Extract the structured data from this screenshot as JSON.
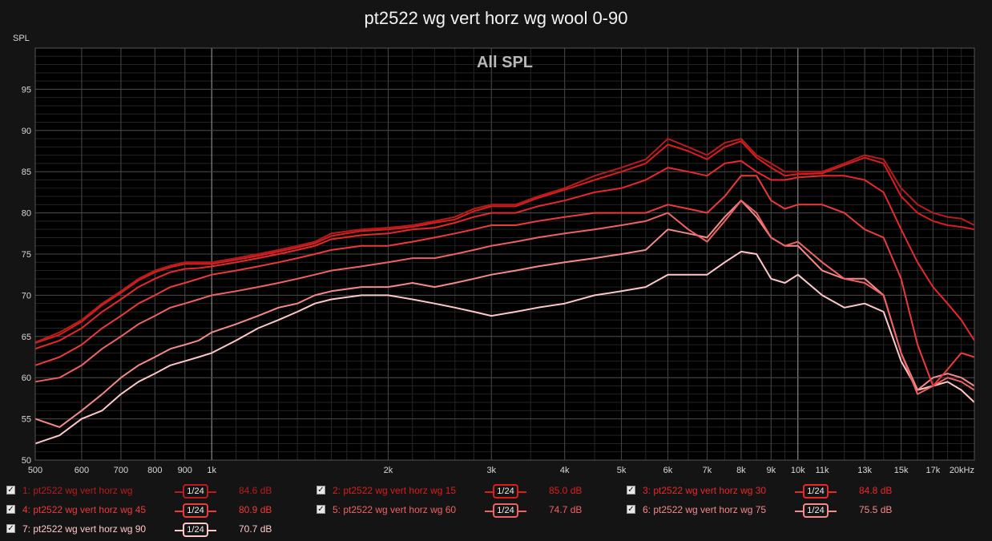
{
  "window": {
    "title": "pt2522 wg vert horz wg wool 0-90"
  },
  "chart_data": {
    "type": "line",
    "title": "pt2522 wg vert horz wg wool 0-90",
    "subtitle": "All SPL",
    "ylabel": "SPL",
    "xlabel": "",
    "xscale": "log",
    "xlim": [
      500,
      20000
    ],
    "ylim": [
      50,
      100
    ],
    "grid": true,
    "y_ticks": [
      "50",
      "55",
      "60",
      "65",
      "70",
      "75",
      "80",
      "85",
      "90",
      "95"
    ],
    "x_ticks": [
      {
        "v": 500,
        "label": "500"
      },
      {
        "v": 600,
        "label": "600"
      },
      {
        "v": 700,
        "label": "700"
      },
      {
        "v": 800,
        "label": "800"
      },
      {
        "v": 900,
        "label": "900"
      },
      {
        "v": 1000,
        "label": "1k"
      },
      {
        "v": 2000,
        "label": "2k"
      },
      {
        "v": 3000,
        "label": "3k"
      },
      {
        "v": 4000,
        "label": "4k"
      },
      {
        "v": 5000,
        "label": "5k"
      },
      {
        "v": 6000,
        "label": "6k"
      },
      {
        "v": 7000,
        "label": "7k"
      },
      {
        "v": 8000,
        "label": "8k"
      },
      {
        "v": 9000,
        "label": "9k"
      },
      {
        "v": 10000,
        "label": "10k"
      },
      {
        "v": 11000,
        "label": "11k"
      },
      {
        "v": 13000,
        "label": "13k"
      },
      {
        "v": 15000,
        "label": "15k"
      },
      {
        "v": 17000,
        "label": "17k"
      },
      {
        "v": 20000,
        "label": "20kHz"
      }
    ],
    "freqs": [
      500,
      550,
      600,
      650,
      700,
      750,
      800,
      850,
      900,
      950,
      1000,
      1100,
      1200,
      1300,
      1400,
      1500,
      1600,
      1800,
      2000,
      2200,
      2400,
      2600,
      2800,
      3000,
      3300,
      3600,
      4000,
      4500,
      5000,
      5500,
      6000,
      6500,
      7000,
      7500,
      8000,
      8500,
      9000,
      9500,
      10000,
      11000,
      12000,
      13000,
      14000,
      15000,
      16000,
      17000,
      18000,
      19000,
      20000
    ],
    "series": [
      {
        "name": "1: pt2522 wg vert horz wg",
        "smoothing": "1/24",
        "level": "84.6 dB",
        "color": "#b71c1c",
        "values": [
          64.3,
          65.5,
          67,
          69,
          70.5,
          72,
          73,
          73.6,
          74,
          74,
          74,
          74.5,
          75,
          75.5,
          76,
          76.5,
          77.5,
          78,
          78.2,
          78.5,
          79,
          79.5,
          80.5,
          81,
          81,
          82,
          83,
          84.5,
          85.5,
          86.5,
          89,
          88,
          87,
          88.5,
          89,
          87,
          86,
          85,
          85,
          85,
          86,
          87,
          86.5,
          83,
          81,
          80,
          79.5,
          79.3,
          78.5
        ]
      },
      {
        "name": "2: pt2522 wg vert horz wg 15",
        "smoothing": "1/24",
        "level": "85.0 dB",
        "color": "#dd1c1c",
        "values": [
          64.2,
          65.2,
          66.8,
          68.8,
          70.3,
          71.8,
          72.8,
          73.4,
          73.8,
          73.8,
          73.8,
          74.3,
          74.8,
          75.3,
          75.8,
          76.3,
          77.2,
          77.8,
          78,
          78.3,
          78.8,
          79.2,
          80.2,
          80.8,
          80.8,
          81.8,
          82.8,
          84,
          85,
          86,
          88.3,
          87.5,
          86.5,
          88,
          88.7,
          86.7,
          85.5,
          84.5,
          84.7,
          84.8,
          85.8,
          86.7,
          86,
          82,
          80,
          79,
          78.5,
          78.3,
          78
        ]
      },
      {
        "name": "3: pt2522 wg vert horz wg 30",
        "smoothing": "1/24",
        "level": "84.8 dB",
        "color": "#e8282a",
        "values": [
          63.5,
          64.5,
          66,
          68,
          69.5,
          71,
          72,
          72.8,
          73.2,
          73.3,
          73.5,
          74,
          74.5,
          75,
          75.5,
          76,
          76.8,
          77.3,
          77.5,
          78,
          78.2,
          78.8,
          79.5,
          80,
          80,
          80.8,
          81.5,
          82.5,
          83,
          84,
          85.5,
          85,
          84.5,
          86,
          86.3,
          85,
          84,
          84,
          84.3,
          84.5,
          84.5,
          84,
          82.5,
          78,
          74,
          71,
          69,
          67,
          64.5
        ]
      },
      {
        "name": "4: pt2522 wg vert horz wg 45",
        "smoothing": "1/24",
        "level": "80.9 dB",
        "color": "#ee3a3a",
        "values": [
          61.5,
          62.5,
          64,
          66,
          67.5,
          69,
          70,
          71,
          71.5,
          72,
          72.5,
          73,
          73.5,
          74,
          74.5,
          75,
          75.5,
          76,
          76,
          76.5,
          77,
          77.5,
          78,
          78.5,
          78.5,
          79,
          79.5,
          80,
          80,
          80,
          81,
          80.5,
          80,
          82,
          84.5,
          84.5,
          81.5,
          80.5,
          81,
          81,
          80,
          78,
          77,
          72,
          64,
          59,
          61,
          63,
          62.5
        ]
      },
      {
        "name": "5: pt2522 wg vert horz wg 60",
        "smoothing": "1/24",
        "level": "74.7 dB",
        "color": "#f06262",
        "values": [
          59.5,
          60,
          61.5,
          63.5,
          65,
          66.5,
          67.5,
          68.5,
          69,
          69.5,
          70,
          70.5,
          71,
          71.5,
          72,
          72.5,
          73,
          73.5,
          74,
          74.5,
          74.5,
          75,
          75.5,
          76,
          76.5,
          77,
          77.5,
          78,
          78.5,
          79,
          80,
          78,
          76.5,
          79,
          81.5,
          80,
          77,
          76,
          76.5,
          74,
          72,
          71.5,
          70,
          63,
          58,
          59,
          60,
          59.5,
          58.5
        ]
      },
      {
        "name": "6: pt2522 wg vert horz wg 75",
        "smoothing": "1/24",
        "level": "75.5 dB",
        "color": "#f58a8a",
        "values": [
          55,
          54,
          56,
          58,
          60,
          61.5,
          62.5,
          63.5,
          64,
          64.5,
          65.5,
          66.5,
          67.5,
          68.5,
          69,
          70,
          70.5,
          71,
          71,
          71.5,
          71,
          71.5,
          72,
          72.5,
          73,
          73.5,
          74,
          74.5,
          75,
          75.5,
          78,
          77.5,
          77,
          79.5,
          81.5,
          79.5,
          77,
          76,
          76,
          73,
          72,
          72,
          70,
          63,
          58.5,
          60,
          60.5,
          60,
          59
        ]
      },
      {
        "name": "7: pt2522 wg vert horz wg 90",
        "smoothing": "1/24",
        "level": "70.7 dB",
        "color": "#ffc8c8",
        "values": [
          52,
          53,
          55,
          56,
          58,
          59.5,
          60.5,
          61.5,
          62,
          62.5,
          63,
          64.5,
          66,
          67,
          68,
          69,
          69.5,
          70,
          70,
          69.5,
          69,
          68.5,
          68,
          67.5,
          68,
          68.5,
          69,
          70,
          70.5,
          71,
          72.5,
          72.5,
          72.5,
          74,
          75.3,
          75,
          72,
          71.5,
          72.5,
          70,
          68.5,
          69,
          68,
          62,
          58.5,
          59,
          59.5,
          58.5,
          57
        ]
      }
    ]
  }
}
